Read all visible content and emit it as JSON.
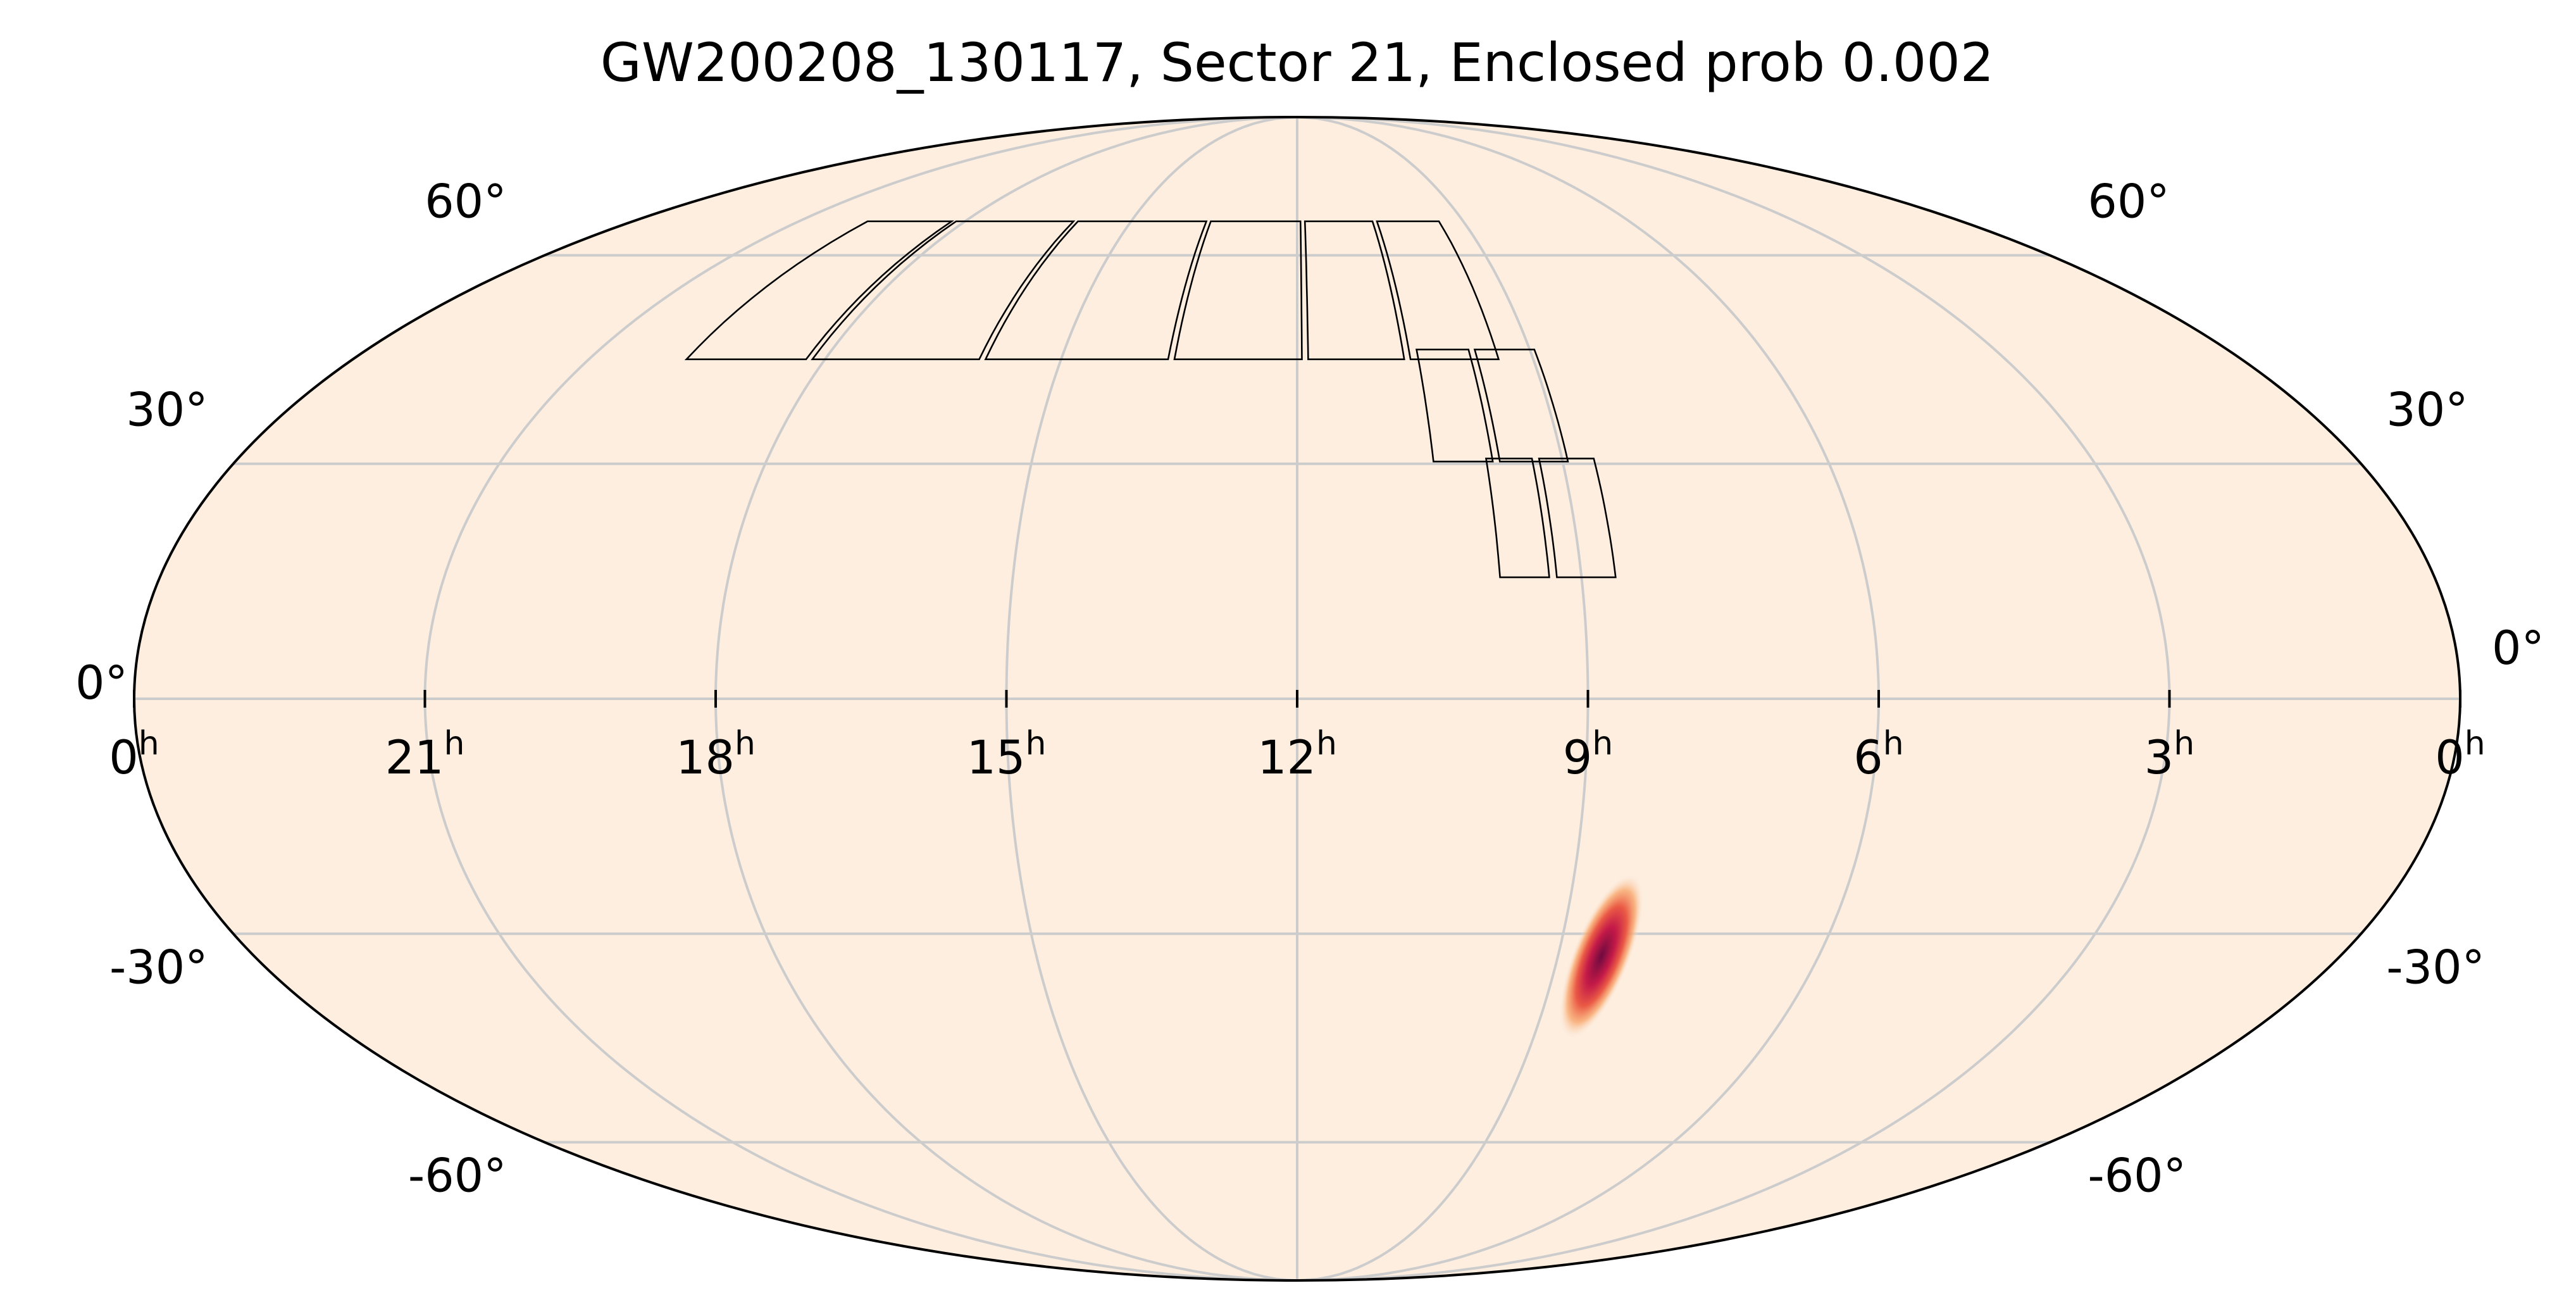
{
  "chart_data": {
    "type": "skymap",
    "projection": "mollweide",
    "title": "GW200208_130117, Sector 21, Enclosed prob 0.002",
    "ra_ticks": [
      {
        "label": "0",
        "sup": "h",
        "ra_hours": 24
      },
      {
        "label": "21",
        "sup": "h",
        "ra_hours": 21
      },
      {
        "label": "18",
        "sup": "h",
        "ra_hours": 18
      },
      {
        "label": "15",
        "sup": "h",
        "ra_hours": 15
      },
      {
        "label": "12",
        "sup": "h",
        "ra_hours": 12
      },
      {
        "label": "9",
        "sup": "h",
        "ra_hours": 9
      },
      {
        "label": "6",
        "sup": "h",
        "ra_hours": 6
      },
      {
        "label": "3",
        "sup": "h",
        "ra_hours": 3
      },
      {
        "label": "0",
        "sup": "h",
        "ra_hours": 0
      }
    ],
    "dec_ticks": [
      {
        "label": "60°",
        "dec": 60
      },
      {
        "label": "30°",
        "dec": 30
      },
      {
        "label": "0°",
        "dec": 0
      },
      {
        "label": "-30°",
        "dec": -30
      },
      {
        "label": "-60°",
        "dec": -60
      }
    ],
    "grid": true,
    "background_color": "#fdeee0",
    "probability_blob": {
      "ra_hours": 8.5,
      "dec": -33,
      "colormap": [
        "#fdeee0",
        "#f7b98c",
        "#ef7a51",
        "#d6204a",
        "#8a0d46"
      ]
    },
    "footprint_camera_rows": [
      {
        "dec_lo": 44,
        "dec_hi": 66,
        "ra_hours": [
          19.8,
          18.2,
          16.0,
          13.6,
          11.9,
          10.6,
          9.4
        ]
      },
      {
        "dec_lo": 30,
        "dec_hi": 46,
        "ra_hours": [
          10.5,
          9.75,
          8.9
        ]
      },
      {
        "dec_lo": 15,
        "dec_hi": 31,
        "ra_hours": [
          9.9,
          9.3,
          8.6
        ]
      }
    ],
    "enclosed_probability": 0.002,
    "sector": 21
  }
}
